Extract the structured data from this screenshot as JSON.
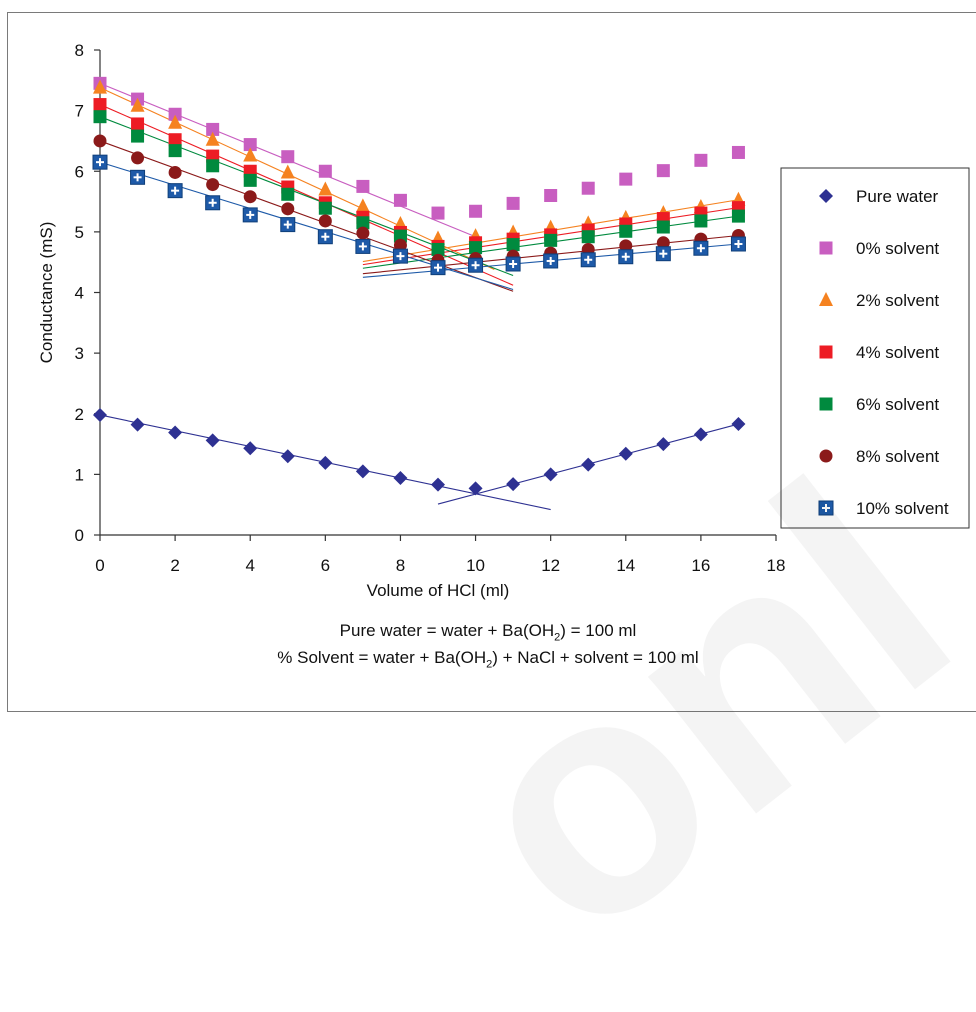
{
  "chart_data": {
    "type": "scatter",
    "title": "",
    "xlabel": "Volume of HCl (ml)",
    "ylabel": "Conductance (mS)",
    "xlim": [
      0,
      18
    ],
    "ylim": [
      0,
      8
    ],
    "xticks": [
      "0",
      "2",
      "4",
      "6",
      "8",
      "10",
      "12",
      "14",
      "16",
      "18"
    ],
    "yticks": [
      "0",
      "1",
      "2",
      "3",
      "4",
      "5",
      "6",
      "7",
      "8"
    ],
    "grid": false,
    "legend_position": "right",
    "series": [
      {
        "name": "Pure water",
        "marker": "diamond",
        "color": "#2e3192",
        "x": [
          0,
          1,
          2,
          3,
          4,
          5,
          6,
          7,
          8,
          9,
          10,
          11,
          12,
          13,
          14,
          15,
          16,
          17
        ],
        "y": [
          1.98,
          1.82,
          1.69,
          1.56,
          1.43,
          1.3,
          1.19,
          1.05,
          0.94,
          0.83,
          0.77,
          0.84,
          1.0,
          1.16,
          1.34,
          1.5,
          1.66,
          1.83
        ],
        "fit_lines": [
          [
            [
              0,
              1.98
            ],
            [
              12,
              0.42
            ]
          ],
          [
            [
              9,
              0.51
            ],
            [
              17,
              1.83
            ]
          ]
        ]
      },
      {
        "name": "0% solvent",
        "marker": "square",
        "color": "#c85ec0",
        "x": [
          0,
          1,
          2,
          3,
          4,
          5,
          6,
          7,
          8,
          9,
          10,
          11,
          12,
          13,
          14,
          15,
          16,
          17
        ],
        "y": [
          7.45,
          7.19,
          6.94,
          6.69,
          6.44,
          6.24,
          6.0,
          5.75,
          5.52,
          5.31,
          5.34,
          5.47,
          5.6,
          5.72,
          5.87,
          6.01,
          6.18,
          6.31
        ],
        "fit_lines": [
          [
            [
              0,
              7.45
            ],
            [
              10,
              4.92
            ]
          ]
        ]
      },
      {
        "name": "2% solvent",
        "marker": "triangle",
        "color": "#f58220",
        "x": [
          0,
          1,
          2,
          3,
          4,
          5,
          6,
          7,
          8,
          9,
          10,
          11,
          12,
          13,
          14,
          15,
          16,
          17
        ],
        "y": [
          7.38,
          7.08,
          6.8,
          6.52,
          6.26,
          5.98,
          5.7,
          5.42,
          5.13,
          4.89,
          4.93,
          4.99,
          5.07,
          5.14,
          5.23,
          5.31,
          5.41,
          5.53
        ],
        "fit_lines": [
          [
            [
              0,
              7.38
            ],
            [
              10.5,
              4.38
            ]
          ],
          [
            [
              7,
              4.51
            ],
            [
              17,
              5.53
            ]
          ]
        ]
      },
      {
        "name": "4% solvent",
        "marker": "square",
        "color": "#ed1c24",
        "x": [
          0,
          1,
          2,
          3,
          4,
          5,
          6,
          7,
          8,
          9,
          10,
          11,
          12,
          13,
          14,
          15,
          16,
          17
        ],
        "y": [
          7.1,
          6.78,
          6.52,
          6.25,
          6.0,
          5.74,
          5.48,
          5.24,
          4.99,
          4.76,
          4.82,
          4.88,
          4.95,
          5.03,
          5.13,
          5.22,
          5.31,
          5.4
        ],
        "fit_lines": [
          [
            [
              0,
              7.1
            ],
            [
              11,
              4.12
            ]
          ],
          [
            [
              7,
              4.46
            ],
            [
              17,
              5.4
            ]
          ]
        ]
      },
      {
        "name": "6% solvent",
        "marker": "square",
        "color": "#008a3e",
        "x": [
          0,
          1,
          2,
          3,
          4,
          5,
          6,
          7,
          8,
          9,
          10,
          11,
          12,
          13,
          14,
          15,
          16,
          17
        ],
        "y": [
          6.9,
          6.58,
          6.34,
          6.09,
          5.85,
          5.62,
          5.39,
          5.15,
          4.93,
          4.71,
          4.74,
          4.79,
          4.86,
          4.92,
          5.01,
          5.08,
          5.18,
          5.26
        ],
        "fit_lines": [
          [
            [
              0,
              6.9
            ],
            [
              11,
              4.28
            ]
          ],
          [
            [
              7,
              4.4
            ],
            [
              17,
              5.26
            ]
          ]
        ]
      },
      {
        "name": "8% solvent",
        "marker": "circle",
        "color": "#8b1a1a",
        "x": [
          0,
          1,
          2,
          3,
          4,
          5,
          6,
          7,
          8,
          9,
          10,
          11,
          12,
          13,
          14,
          15,
          16,
          17
        ],
        "y": [
          6.5,
          6.22,
          5.98,
          5.78,
          5.58,
          5.38,
          5.18,
          4.98,
          4.78,
          4.53,
          4.56,
          4.6,
          4.65,
          4.71,
          4.77,
          4.82,
          4.88,
          4.94
        ],
        "fit_lines": [
          [
            [
              0,
              6.5
            ],
            [
              11,
              4.02
            ]
          ],
          [
            [
              7,
              4.31
            ],
            [
              17,
              4.94
            ]
          ]
        ]
      },
      {
        "name": "10% solvent",
        "marker": "square-plus",
        "color": "#1e5aa8",
        "x": [
          0,
          1,
          2,
          3,
          4,
          5,
          6,
          7,
          8,
          9,
          10,
          11,
          12,
          13,
          14,
          15,
          16,
          17
        ],
        "y": [
          6.15,
          5.9,
          5.68,
          5.48,
          5.28,
          5.12,
          4.92,
          4.76,
          4.6,
          4.41,
          4.45,
          4.47,
          4.52,
          4.54,
          4.59,
          4.64,
          4.73,
          4.8
        ],
        "fit_lines": [
          [
            [
              0,
              6.15
            ],
            [
              11,
              4.05
            ]
          ],
          [
            [
              7,
              4.25
            ],
            [
              17,
              4.8
            ]
          ]
        ]
      }
    ]
  },
  "captions": {
    "line1_pre": "Pure water = water + Ba(OH",
    "line1_sub": "2",
    "line1_post": ") = 100 ml",
    "line2_pre": "% Solvent = water + Ba(OH",
    "line2_sub": "2",
    "line2_post": ") + NaCl + solvent = 100 ml"
  }
}
